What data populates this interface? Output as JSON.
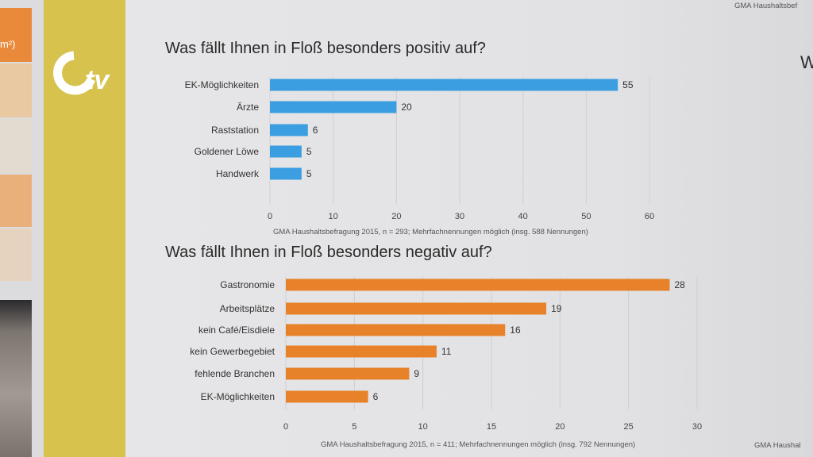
{
  "header_source_fragment": "GMA Haushaltsbef",
  "right_fragment": "W",
  "footer_source_fragment": "GMA Haushal",
  "left_panel_fragment": "m²)",
  "logo_text": "Otv",
  "colors": {
    "positive_bar": "#3a9ee0",
    "negative_bar": "#e8822a",
    "yellow_strip": "#d6c24c",
    "orange_panel": "#e98a3a"
  },
  "chart_data": [
    {
      "type": "bar",
      "orientation": "horizontal",
      "title": "Was fällt Ihnen in Floß besonders positiv auf?",
      "categories": [
        "EK-Möglichkeiten",
        "Ärzte",
        "Raststation",
        "Goldener Löwe",
        "Handwerk"
      ],
      "values": [
        55,
        20,
        6,
        5,
        5
      ],
      "xlim": [
        0,
        60
      ],
      "xticks": [
        "0",
        "10",
        "20",
        "30",
        "40",
        "50",
        "60"
      ],
      "grid": true,
      "source": "GMA Haushaltsbefragung 2015, n = 293; Mehrfachnennungen möglich (insg. 588 Nennungen)"
    },
    {
      "type": "bar",
      "orientation": "horizontal",
      "title": "Was fällt Ihnen in Floß besonders negativ auf?",
      "categories": [
        "Gastronomie",
        "Arbeitsplätze",
        "kein Café/Eisdiele",
        "kein Gewerbegebiet",
        "fehlende Branchen",
        "EK-Möglichkeiten"
      ],
      "values": [
        28,
        19,
        16,
        11,
        9,
        6
      ],
      "xlim": [
        0,
        30
      ],
      "xticks": [
        "0",
        "5",
        "10",
        "15",
        "20",
        "25",
        "30"
      ],
      "grid": true,
      "source": "GMA Haushaltsbefragung 2015, n = 411; Mehrfachnennungen möglich (insg. 792 Nennungen)"
    }
  ]
}
